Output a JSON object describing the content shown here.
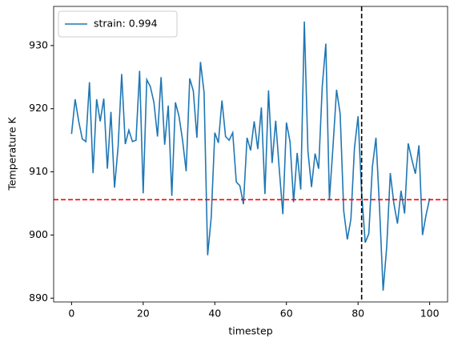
{
  "chart_data": {
    "type": "line",
    "xlabel": "timestep",
    "ylabel": "Temperature K",
    "x": [
      0,
      1,
      2,
      3,
      4,
      5,
      6,
      7,
      8,
      9,
      10,
      11,
      12,
      13,
      14,
      15,
      16,
      17,
      18,
      19,
      20,
      21,
      22,
      23,
      24,
      25,
      26,
      27,
      28,
      29,
      30,
      31,
      32,
      33,
      34,
      35,
      36,
      37,
      38,
      39,
      40,
      41,
      42,
      43,
      44,
      45,
      46,
      47,
      48,
      49,
      50,
      51,
      52,
      53,
      54,
      55,
      56,
      57,
      58,
      59,
      60,
      61,
      62,
      63,
      64,
      65,
      66,
      67,
      68,
      69,
      70,
      71,
      72,
      73,
      74,
      75,
      76,
      77,
      78,
      79,
      80,
      81,
      82,
      83,
      84,
      85,
      86,
      87,
      88,
      89,
      90,
      91,
      92,
      93,
      94,
      95,
      96,
      97,
      98,
      99,
      100
    ],
    "series": [
      {
        "name": "strain: 0.994",
        "color": "#1f77b4",
        "values": [
          916,
          921.5,
          918,
          915.2,
          914.8,
          924.2,
          909.8,
          921.5,
          918,
          921.6,
          910.5,
          919.5,
          907.5,
          914,
          925.5,
          914.4,
          916.6,
          914.8,
          915,
          926,
          906.6,
          924.6,
          923.5,
          921,
          915.6,
          925,
          914.3,
          920.5,
          906.2,
          921,
          918.8,
          915,
          910.1,
          924.8,
          922.8,
          915.4,
          927.4,
          922.6,
          896.8,
          902.8,
          916.2,
          914.6,
          921.3,
          915.6,
          915,
          916.2,
          908.4,
          907.8,
          904.9,
          915.4,
          913.4,
          918,
          913.6,
          920.2,
          906.5,
          922.9,
          911.4,
          918.1,
          910.4,
          903.3,
          917.8,
          914.8,
          905.2,
          913,
          907.2,
          933.8,
          913.3,
          907.6,
          912.9,
          910.5,
          923.5,
          930.3,
          905.6,
          914,
          923,
          919.2,
          903.8,
          899.3,
          902.5,
          913.8,
          918.8,
          906.7,
          898.8,
          900.2,
          910.8,
          915.4,
          904.3,
          891.2,
          898.1,
          909.8,
          905,
          901.8,
          907,
          903.4,
          914.5,
          912,
          909.7,
          914.2,
          900,
          903.2,
          905.8
        ]
      }
    ],
    "hlines": [
      {
        "value": 905.6,
        "color": "#ff0000"
      }
    ],
    "vlines": [
      {
        "value": 81,
        "color": "#000000"
      }
    ],
    "xlim": [
      -5,
      105
    ],
    "ylim": [
      889.4,
      936.2
    ],
    "xticks": [
      0,
      20,
      40,
      60,
      80,
      100
    ],
    "yticks": [
      890,
      900,
      910,
      920,
      930
    ],
    "legend": "upper left"
  }
}
